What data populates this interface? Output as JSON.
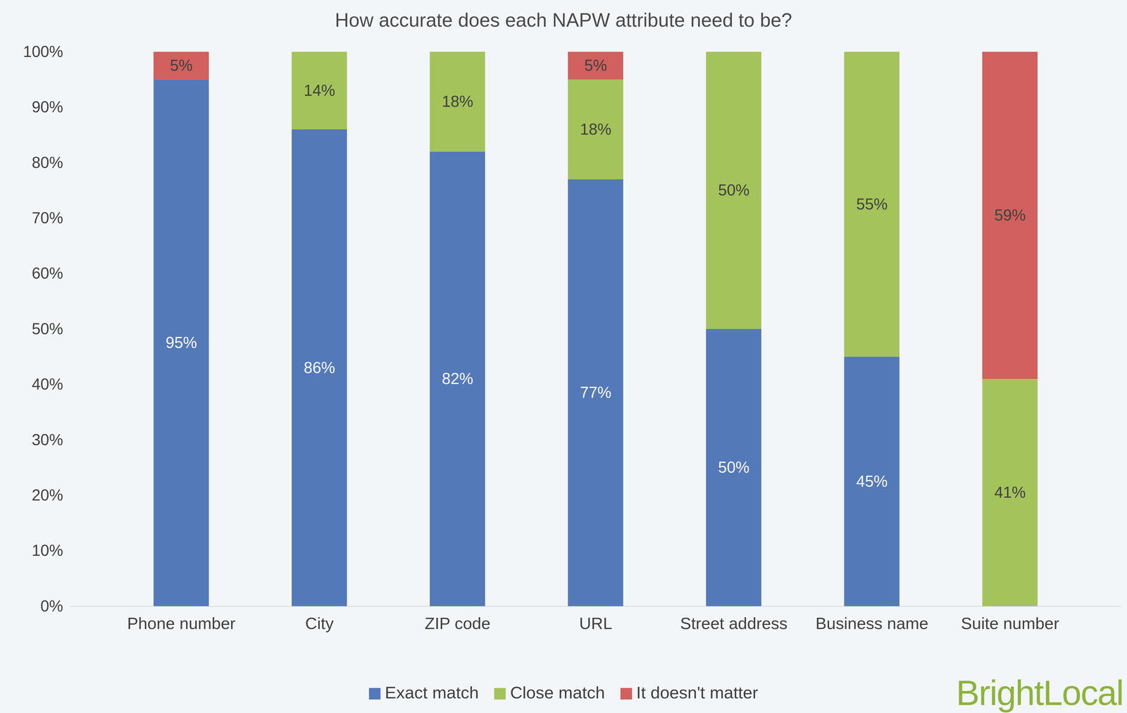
{
  "chart_data": {
    "type": "bar",
    "title": "How accurate does each NAPW attribute need to be?",
    "caption": "BrightLocal",
    "categories": [
      "Phone number",
      "City",
      "ZIP code",
      "URL",
      "Street address",
      "Business name",
      "Suite number"
    ],
    "series": [
      {
        "name": "Exact match",
        "color": "#5479b9",
        "values": [
          95,
          86,
          82,
          77,
          50,
          45,
          null
        ],
        "value_labels": [
          "95%",
          "86%",
          "82%",
          "77%",
          "50%",
          "45%",
          null
        ]
      },
      {
        "name": "Close match",
        "color": "#a5c35b",
        "values": [
          null,
          14,
          18,
          18,
          50,
          55,
          41
        ],
        "value_labels": [
          null,
          "14%",
          "18%",
          "18%",
          "50%",
          "55%",
          "41%"
        ]
      },
      {
        "name": "It doesn't matter",
        "color": "#d1605e",
        "values": [
          5,
          null,
          null,
          5,
          null,
          null,
          59
        ],
        "value_labels": [
          "5%",
          null,
          null,
          "5%",
          null,
          null,
          "59%"
        ]
      }
    ],
    "ylim": [
      0,
      100
    ],
    "yticks": [
      {
        "value": 0,
        "label": "0%"
      },
      {
        "value": 10,
        "label": "10%"
      },
      {
        "value": 20,
        "label": "20%"
      },
      {
        "value": 30,
        "label": "30%"
      },
      {
        "value": 40,
        "label": "40%"
      },
      {
        "value": 50,
        "label": "50%"
      },
      {
        "value": 60,
        "label": "60%"
      },
      {
        "value": 70,
        "label": "70%"
      },
      {
        "value": 80,
        "label": "80%"
      },
      {
        "value": 90,
        "label": "90%"
      },
      {
        "value": 100,
        "label": "100%"
      }
    ],
    "stacked": true,
    "data_labels": true,
    "grid": false,
    "legend": "bottom"
  }
}
